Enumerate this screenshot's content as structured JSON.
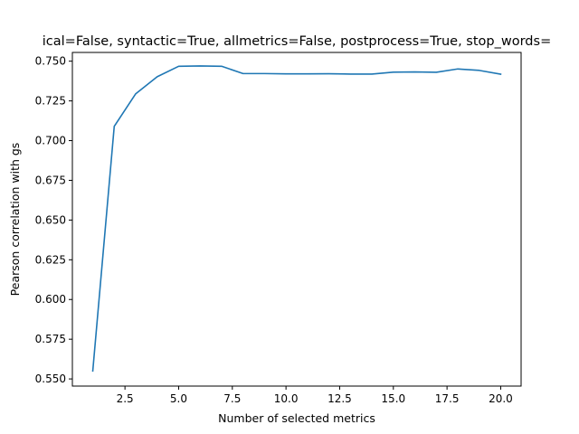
{
  "chart_data": {
    "type": "line",
    "title": "ical=False, syntactic=True, allmetrics=False, postprocess=True, stop_words=",
    "xlabel": "Number of selected metrics",
    "ylabel": "Pearson correlation with gs",
    "xlim": [
      0.05,
      20.95
    ],
    "ylim": [
      0.5455,
      0.7555
    ],
    "x_ticks": [
      2.5,
      5.0,
      7.5,
      10.0,
      12.5,
      15.0,
      17.5,
      20.0
    ],
    "x_tick_labels": [
      "2.5",
      "5.0",
      "7.5",
      "10.0",
      "12.5",
      "15.0",
      "17.5",
      "20.0"
    ],
    "y_ticks": [
      0.55,
      0.575,
      0.6,
      0.625,
      0.65,
      0.675,
      0.7,
      0.725,
      0.75
    ],
    "y_tick_labels": [
      "0.550",
      "0.575",
      "0.600",
      "0.625",
      "0.650",
      "0.675",
      "0.700",
      "0.725",
      "0.750"
    ],
    "grid": false,
    "series": [
      {
        "color": "#1f77b4",
        "x": [
          1,
          2,
          3,
          4,
          5,
          6,
          7,
          8,
          9,
          10,
          11,
          12,
          13,
          14,
          15,
          16,
          17,
          18,
          19,
          20
        ],
        "y": [
          0.555,
          0.709,
          0.7295,
          0.7402,
          0.7468,
          0.747,
          0.7468,
          0.7422,
          0.7422,
          0.742,
          0.742,
          0.7421,
          0.7419,
          0.7419,
          0.7431,
          0.7432,
          0.743,
          0.7451,
          0.7442,
          0.7418
        ]
      }
    ]
  }
}
